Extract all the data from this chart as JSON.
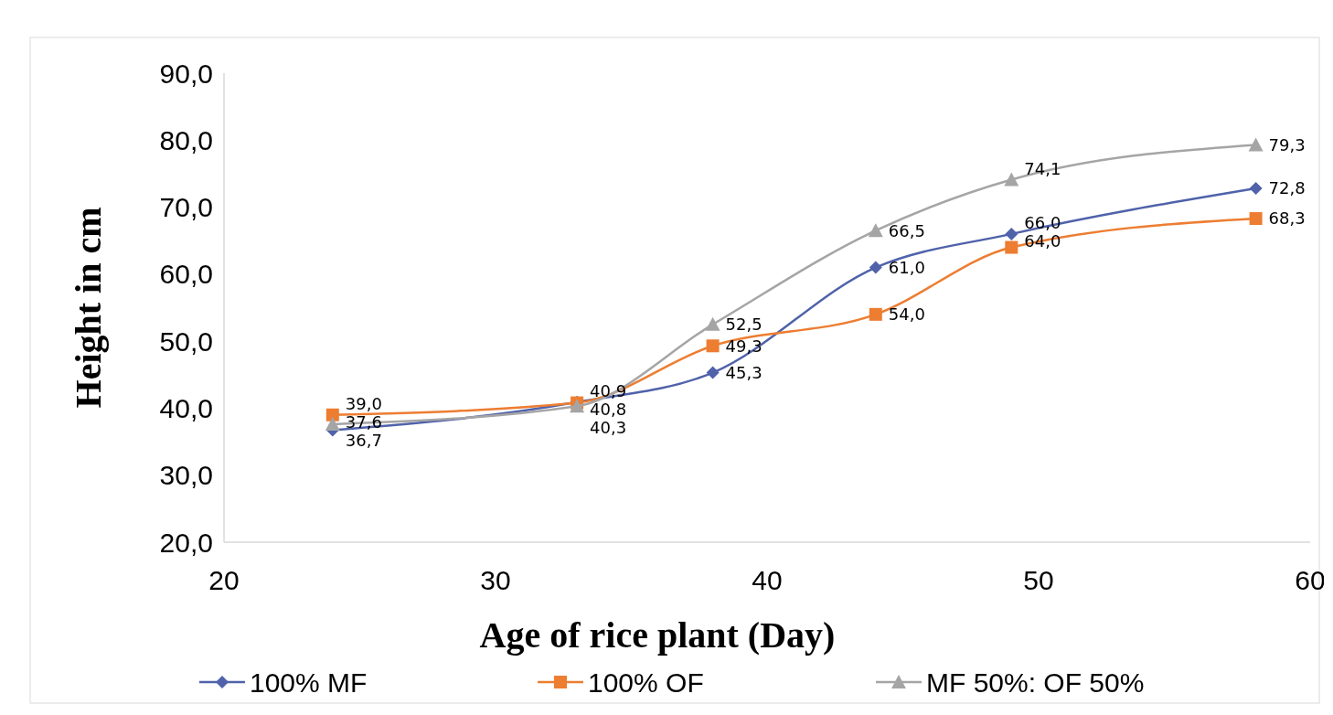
{
  "chart_data": {
    "type": "line",
    "xlabel": "Age of rice plant (Day)",
    "ylabel": "Height in cm",
    "x": [
      24,
      33,
      38,
      44,
      49,
      58
    ],
    "series": [
      {
        "name": "100% MF",
        "color": "#4f62aa",
        "marker": "diamond",
        "values": [
          36.7,
          40.9,
          45.3,
          61.0,
          66.0,
          72.8
        ],
        "value_labels": [
          "36,7",
          "40,9",
          "45,3",
          "61,0",
          "66,0",
          "72,8"
        ]
      },
      {
        "name": "100% OF",
        "color": "#ed7d31",
        "marker": "square",
        "values": [
          39.0,
          40.8,
          49.3,
          54.0,
          64.0,
          68.3
        ],
        "value_labels": [
          "39,0",
          "40,8",
          "49,3",
          "54,0",
          "64,0",
          "68,3"
        ]
      },
      {
        "name": "MF 50%: OF 50%",
        "color": "#a5a5a5",
        "marker": "triangle",
        "values": [
          37.6,
          40.3,
          52.5,
          66.5,
          74.1,
          79.3
        ],
        "value_labels": [
          "37,6",
          "40,3",
          "52,5",
          "66,5",
          "74,1",
          "79,3"
        ]
      }
    ],
    "xlim": [
      20,
      60
    ],
    "xticks": [
      20,
      30,
      40,
      50,
      60
    ],
    "ylim": [
      20,
      90
    ],
    "yticks": [
      {
        "value": 20,
        "label": "20,0"
      },
      {
        "value": 30,
        "label": "30,0"
      },
      {
        "value": 40,
        "label": "40,0"
      },
      {
        "value": 50,
        "label": "50,0"
      },
      {
        "value": 60,
        "label": "60,0"
      },
      {
        "value": 70,
        "label": "70,0"
      },
      {
        "value": 80,
        "label": "80,0"
      },
      {
        "value": 90,
        "label": "90,0"
      }
    ],
    "grid": false,
    "legend": "bottom",
    "line_style": "solid"
  }
}
